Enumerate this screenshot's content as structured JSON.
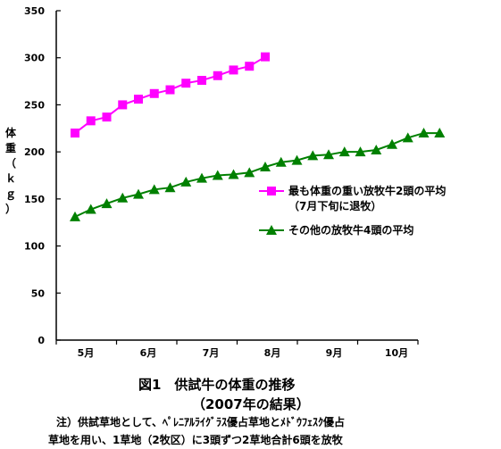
{
  "chart_data": {
    "type": "line",
    "ylabel": "体重（ｋｇ）",
    "ylim": [
      0,
      350
    ],
    "yticks": [
      0,
      50,
      100,
      150,
      200,
      250,
      300,
      350
    ],
    "xticks": [
      "5月",
      "6月",
      "7月",
      "8月",
      "9月",
      "10月"
    ],
    "grid": false,
    "legend_position": "right",
    "series": [
      {
        "name": "最も体重の重い放牧牛2頭の平均",
        "name_line2": "（7月下旬に退牧）",
        "color": "#ff00ff",
        "marker": "square",
        "x": [
          0,
          0.25,
          0.5,
          0.75,
          1.0,
          1.25,
          1.5,
          1.75,
          2.0,
          2.25,
          2.5,
          2.75,
          3.0
        ],
        "values": [
          220,
          233,
          237,
          250,
          256,
          262,
          266,
          273,
          276,
          281,
          287,
          291,
          301
        ]
      },
      {
        "name": "その他の放牧牛4頭の平均",
        "color": "#008000",
        "marker": "triangle",
        "x": [
          0,
          0.25,
          0.5,
          0.75,
          1.0,
          1.25,
          1.5,
          1.75,
          2.0,
          2.25,
          2.5,
          2.75,
          3.0,
          3.25,
          3.5,
          3.75,
          4.0,
          4.25,
          4.5,
          4.75,
          5.0,
          5.25,
          5.5,
          5.75
        ],
        "values": [
          131,
          139,
          145,
          151,
          155,
          160,
          162,
          168,
          172,
          175,
          176,
          178,
          184,
          189,
          191,
          196,
          197,
          200,
          200,
          202,
          208,
          215,
          220,
          220
        ]
      }
    ]
  },
  "figure": {
    "title_line1": "図1　供試牛の体重の推移",
    "title_line2": "（2007年の結果）"
  },
  "note": {
    "line1": "注）供試草地として、ﾍﾟﾚﾆｱﾙﾗｲｸﾞﾗｽ優占草地とﾒﾄﾞｳﾌｪｽｸ優占",
    "line2": "草地を用い、1草地（2牧区）に3頭ずつ2草地合計6頭を放牧"
  }
}
